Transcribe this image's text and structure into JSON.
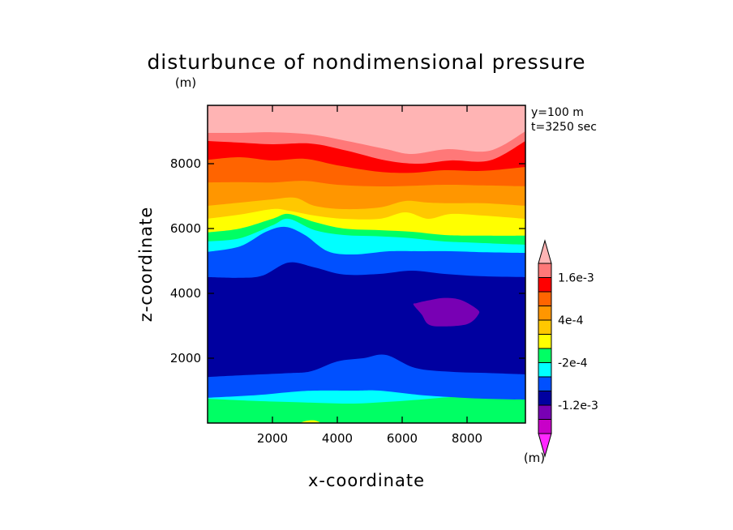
{
  "chart_data": {
    "type": "heatmap",
    "title": "disturbunce of nondimensional pressure",
    "xlabel": "x-coordinate",
    "ylabel": "z-coordinate",
    "x_unit": "(m)",
    "y_unit": "(m)",
    "legend_unit": "(m)",
    "annotations": [
      "y=100 m",
      "t=3250 sec"
    ],
    "xlim": [
      0,
      9800
    ],
    "ylim": [
      0,
      9800
    ],
    "xticks": [
      2000,
      4000,
      6000,
      8000
    ],
    "xtick_labels": [
      "2000",
      "4000",
      "6000",
      "8000"
    ],
    "yticks": [
      2000,
      4000,
      6000,
      8000
    ],
    "ytick_labels": [
      "2000",
      "4000",
      "6000",
      "8000"
    ],
    "legend": {
      "placement": "right",
      "labels": [
        {
          "level": 0.0016,
          "text": "1.6e-3"
        },
        {
          "level": 0.0004,
          "text": "4e-4"
        },
        {
          "level": -0.0002,
          "text": "-2e-4"
        },
        {
          "level": -0.0012,
          "text": "-1.2e-3"
        }
      ],
      "bins": [
        {
          "range": "> 2.0e-3",
          "color": "#ffb4b4"
        },
        {
          "range": "1.6e-3 to 2.0e-3",
          "color": "#ff7878"
        },
        {
          "range": "1.2e-3 to 1.6e-3",
          "color": "#ff0000"
        },
        {
          "range": "8e-4 to 1.2e-3",
          "color": "#ff6400"
        },
        {
          "range": "4e-4 to 8e-4",
          "color": "#ff9600"
        },
        {
          "range": "2e-4 to 4e-4",
          "color": "#ffc800"
        },
        {
          "range": "0 to 2e-4",
          "color": "#ffff00"
        },
        {
          "range": "-2e-4 to 0",
          "color": "#00ff64"
        },
        {
          "range": "-4e-4 to -2e-4",
          "color": "#00ffff"
        },
        {
          "range": "-8e-4 to -4e-4",
          "color": "#0050ff"
        },
        {
          "range": "-1.2e-3 to -8e-4",
          "color": "#0000a0"
        },
        {
          "range": "-1.6e-3 to -1.2e-3",
          "color": "#7800b4"
        },
        {
          "range": "-2.0e-3 to -1.6e-3",
          "color": "#c800c8"
        },
        {
          "range": "< -2.0e-3",
          "color": "#ff28ff"
        }
      ]
    },
    "contour_boundaries": [
      {
        "lower": "#00ff64",
        "upper": "#00ffff",
        "z": [
          [
            0,
            750
          ],
          [
            1500,
            680
          ],
          [
            2500,
            650
          ],
          [
            3500,
            620
          ],
          [
            4500,
            600
          ],
          [
            5500,
            650
          ],
          [
            6500,
            720
          ],
          [
            7500,
            800
          ],
          [
            8500,
            820
          ],
          [
            9800,
            800
          ]
        ]
      },
      {
        "lower": "#00ffff",
        "upper": "#0050ff",
        "z": [
          [
            0,
            780
          ],
          [
            1500,
            860
          ],
          [
            2500,
            950
          ],
          [
            3300,
            1000
          ],
          [
            4500,
            1000
          ],
          [
            5300,
            1000
          ],
          [
            6500,
            870
          ],
          [
            7500,
            800
          ],
          [
            8500,
            750
          ],
          [
            9800,
            720
          ]
        ]
      },
      {
        "lower": "#0050ff",
        "upper": "#0000a0",
        "z": [
          [
            0,
            1420
          ],
          [
            1200,
            1480
          ],
          [
            2500,
            1540
          ],
          [
            3200,
            1600
          ],
          [
            4000,
            1900
          ],
          [
            4800,
            2000
          ],
          [
            5500,
            2100
          ],
          [
            6400,
            1700
          ],
          [
            7500,
            1580
          ],
          [
            8700,
            1540
          ],
          [
            9800,
            1500
          ]
        ]
      },
      {
        "lower": "#0000a0",
        "upper": "#0050ff",
        "z": [
          [
            0,
            4500
          ],
          [
            1000,
            4480
          ],
          [
            1700,
            4550
          ],
          [
            2500,
            4950
          ],
          [
            3300,
            4800
          ],
          [
            4200,
            4580
          ],
          [
            5300,
            4600
          ],
          [
            6300,
            4700
          ],
          [
            7300,
            4600
          ],
          [
            8400,
            4530
          ],
          [
            9800,
            4500
          ]
        ]
      },
      {
        "lower": "#0050ff",
        "upper": "#00ffff",
        "z": [
          [
            0,
            5280
          ],
          [
            1000,
            5450
          ],
          [
            1800,
            5900
          ],
          [
            2400,
            6050
          ],
          [
            3000,
            5800
          ],
          [
            3700,
            5300
          ],
          [
            4500,
            5200
          ],
          [
            5600,
            5300
          ],
          [
            6500,
            5300
          ],
          [
            7500,
            5300
          ],
          [
            8500,
            5270
          ],
          [
            9800,
            5250
          ]
        ]
      },
      {
        "lower": "#00ffff",
        "upper": "#00ff64",
        "z": [
          [
            0,
            5600
          ],
          [
            1000,
            5700
          ],
          [
            2000,
            6100
          ],
          [
            2500,
            6300
          ],
          [
            3300,
            5950
          ],
          [
            4200,
            5800
          ],
          [
            5300,
            5760
          ],
          [
            6300,
            5700
          ],
          [
            7300,
            5600
          ],
          [
            8300,
            5560
          ],
          [
            9800,
            5500
          ]
        ]
      },
      {
        "lower": "#00ff64",
        "upper": "#ffff00",
        "z": [
          [
            0,
            5880
          ],
          [
            1000,
            6000
          ],
          [
            2000,
            6300
          ],
          [
            2500,
            6450
          ],
          [
            3300,
            6200
          ],
          [
            4200,
            6000
          ],
          [
            5300,
            5950
          ],
          [
            6300,
            5900
          ],
          [
            7300,
            5800
          ],
          [
            8300,
            5780
          ],
          [
            9800,
            5780
          ]
        ]
      },
      {
        "lower": "#ffff00",
        "upper": "#ffc800",
        "z": [
          [
            0,
            6300
          ],
          [
            1000,
            6430
          ],
          [
            2000,
            6600
          ],
          [
            2500,
            6550
          ],
          [
            3300,
            6400
          ],
          [
            4200,
            6300
          ],
          [
            5300,
            6300
          ],
          [
            6100,
            6500
          ],
          [
            6800,
            6300
          ],
          [
            7500,
            6450
          ],
          [
            8500,
            6400
          ],
          [
            9800,
            6300
          ]
        ]
      },
      {
        "lower": "#ffc800",
        "upper": "#ff9600",
        "z": [
          [
            0,
            6700
          ],
          [
            1000,
            6800
          ],
          [
            2000,
            6900
          ],
          [
            2700,
            6950
          ],
          [
            3300,
            6700
          ],
          [
            4200,
            6600
          ],
          [
            5300,
            6650
          ],
          [
            6100,
            6850
          ],
          [
            6800,
            6800
          ],
          [
            7500,
            6780
          ],
          [
            8500,
            6780
          ],
          [
            9800,
            6700
          ]
        ]
      },
      {
        "lower": "#ff9600",
        "upper": "#ff6400",
        "z": [
          [
            0,
            7420
          ],
          [
            1000,
            7430
          ],
          [
            2000,
            7420
          ],
          [
            3000,
            7470
          ],
          [
            4000,
            7350
          ],
          [
            5300,
            7300
          ],
          [
            6300,
            7320
          ],
          [
            7300,
            7350
          ],
          [
            8500,
            7330
          ],
          [
            9800,
            7300
          ]
        ]
      },
      {
        "lower": "#ff6400",
        "upper": "#ff0000",
        "z": [
          [
            0,
            8120
          ],
          [
            1000,
            8200
          ],
          [
            2000,
            8100
          ],
          [
            3000,
            8150
          ],
          [
            4000,
            7950
          ],
          [
            5300,
            7750
          ],
          [
            6300,
            7720
          ],
          [
            7300,
            7800
          ],
          [
            8500,
            7780
          ],
          [
            9800,
            7900
          ]
        ]
      },
      {
        "lower": "#ff0000",
        "upper": "#ff7878",
        "z": [
          [
            0,
            8700
          ],
          [
            1000,
            8650
          ],
          [
            2000,
            8600
          ],
          [
            3200,
            8620
          ],
          [
            4300,
            8400
          ],
          [
            5500,
            8100
          ],
          [
            6500,
            8000
          ],
          [
            7500,
            8100
          ],
          [
            8700,
            8100
          ],
          [
            9800,
            8700
          ]
        ]
      },
      {
        "lower": "#ff7878",
        "upper": "#ffb4b4",
        "z": [
          [
            0,
            8950
          ],
          [
            1000,
            8950
          ],
          [
            2000,
            8970
          ],
          [
            3200,
            8900
          ],
          [
            4300,
            8700
          ],
          [
            5500,
            8450
          ],
          [
            6300,
            8300
          ],
          [
            7400,
            8450
          ],
          [
            8700,
            8400
          ],
          [
            9800,
            9000
          ]
        ]
      }
    ],
    "patches": [
      {
        "name": "low-pressure-cell",
        "color": "#7800b4",
        "outline": [
          [
            6450,
            3700
          ],
          [
            6800,
            3780
          ],
          [
            7300,
            3860
          ],
          [
            7800,
            3800
          ],
          [
            8300,
            3520
          ],
          [
            8350,
            3350
          ],
          [
            8000,
            3050
          ],
          [
            7200,
            2980
          ],
          [
            6800,
            3050
          ],
          [
            6600,
            3350
          ],
          [
            6350,
            3650
          ]
        ]
      },
      {
        "name": "surface-yellow-spot",
        "color": "#ffff00",
        "outline": [
          [
            2900,
            0
          ],
          [
            3050,
            70
          ],
          [
            3300,
            80
          ],
          [
            3450,
            0
          ]
        ]
      }
    ]
  }
}
